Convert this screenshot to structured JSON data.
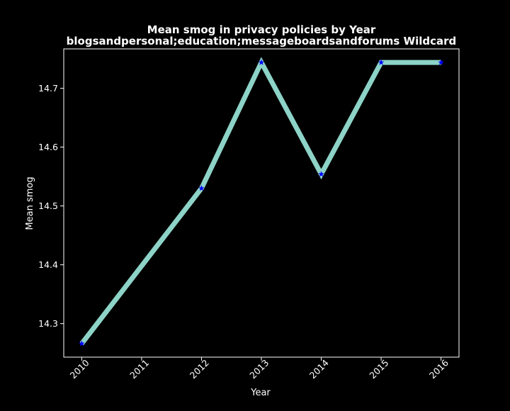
{
  "chart_data": {
    "type": "line",
    "title": "Mean smog in privacy policies by Year",
    "subtitle": "blogsandpersonal;education;messageboardsandforums Wildcard",
    "xlabel": "Year",
    "ylabel": "Mean smog",
    "x": [
      2010,
      2012,
      2013,
      2014,
      2015,
      2016
    ],
    "x_ticks": [
      "2010",
      "2011",
      "2012",
      "2013",
      "2014",
      "2015",
      "2016"
    ],
    "y_ticks": [
      "14.3",
      "14.4",
      "14.5",
      "14.6",
      "14.7"
    ],
    "xlim": [
      2009.7,
      2016.3
    ],
    "ylim": [
      14.243,
      14.767
    ],
    "grid": false,
    "series": [
      {
        "values": [
          14.266,
          14.53,
          14.744,
          14.554,
          14.744,
          14.744
        ],
        "line_color": "#8dd3c7",
        "marker": "star",
        "marker_color": "#0000ff"
      }
    ],
    "colors": {
      "background": "#000000",
      "foreground": "#ffffff"
    }
  }
}
